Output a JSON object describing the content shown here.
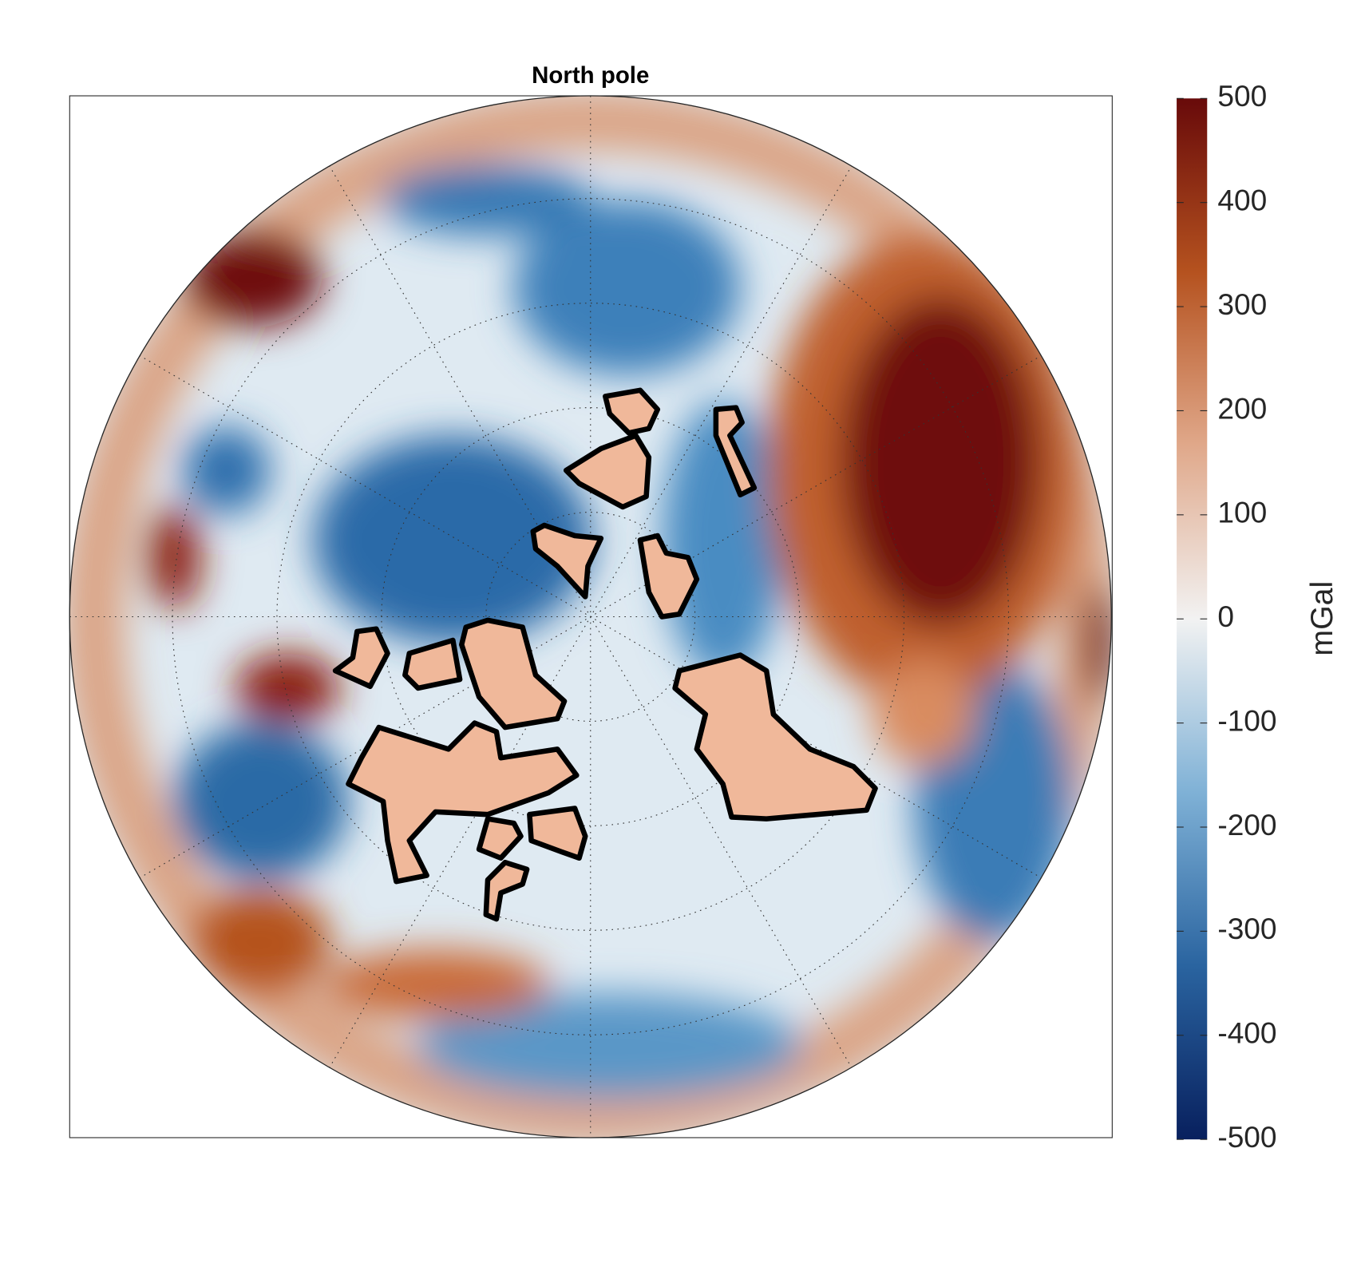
{
  "chart_data": {
    "type": "polar-map",
    "title": "North pole",
    "colorbar": {
      "label": "mGal",
      "lim": [
        -500,
        500
      ],
      "ticks": [
        500,
        400,
        300,
        200,
        100,
        0,
        -100,
        -200,
        -300,
        -400,
        -500
      ],
      "colormap": [
        "#08205e",
        "#2a64a0",
        "#7fb1d6",
        "#f2f2f2",
        "#e0a88a",
        "#b5521f",
        "#680a0a"
      ]
    }
  }
}
